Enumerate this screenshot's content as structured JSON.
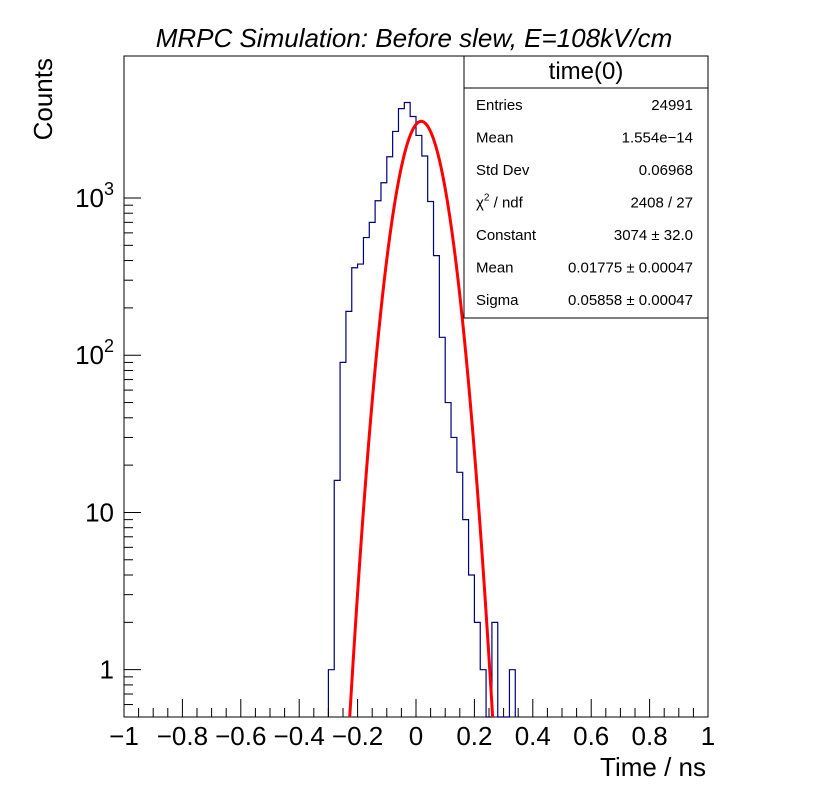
{
  "chart_data": {
    "type": "histogram",
    "title": "MRPC Simulation: Before slew, E=108kV/cm",
    "xlabel": "Time / ns",
    "ylabel": "Counts",
    "xlim": [
      -1,
      1
    ],
    "ylim": [
      0.5,
      8000
    ],
    "y_scale": "log",
    "grid": false,
    "x_tick_labels": [
      "−1",
      "−0.8",
      "−0.6",
      "−0.4",
      "−0.2",
      "0",
      "0.2",
      "0.4",
      "0.6",
      "0.8",
      "1"
    ],
    "x_tick_values": [
      -1,
      -0.8,
      -0.6,
      -0.4,
      -0.2,
      0,
      0.2,
      0.4,
      0.6,
      0.8,
      1
    ],
    "y_tick_labels": [
      "1",
      "10",
      "10²",
      "10³"
    ],
    "y_tick_values": [
      1,
      10,
      100,
      1000
    ],
    "histogram": {
      "name": "time(0)",
      "color": "#000080",
      "bin_width": 0.02,
      "bin_edges_start": -0.3,
      "counts": [
        1,
        16,
        90,
        190,
        360,
        380,
        560,
        700,
        960,
        1250,
        1830,
        2650,
        3700,
        4050,
        3300,
        2500,
        1850,
        950,
        430,
        130,
        50,
        30,
        18,
        9,
        4,
        2,
        1,
        0,
        2,
        0,
        0,
        1
      ]
    },
    "fit": {
      "function": "gaus",
      "color": "#ff0000",
      "constant": 3074,
      "mean": 0.01775,
      "sigma": 0.05858
    },
    "stats_box": {
      "title": "time(0)",
      "position": "top-right",
      "rows": [
        {
          "label": "Entries",
          "value": "24991"
        },
        {
          "label": "Mean",
          "value": "1.554e−14"
        },
        {
          "label": "Std Dev",
          "value": "0.06968"
        },
        {
          "label": "χ² / ndf",
          "value": "2408 / 27"
        },
        {
          "label": "Constant",
          "value": "3074 ± 32.0"
        },
        {
          "label": "Mean",
          "value": "0.01775 ± 0.00047"
        },
        {
          "label": "Sigma",
          "value": "0.05858 ± 0.00047"
        }
      ]
    }
  }
}
